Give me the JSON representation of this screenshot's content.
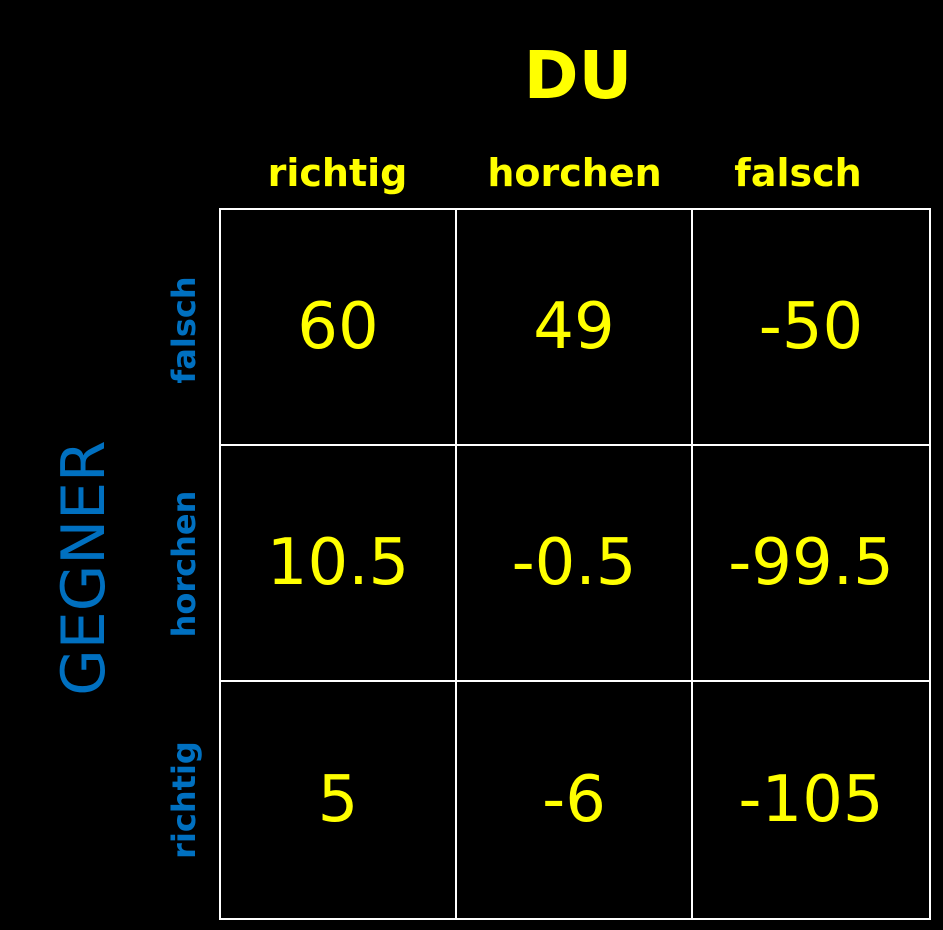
{
  "column_player": "DU",
  "row_player": "GEGNER",
  "columns": [
    "richtig",
    "horchen",
    "falsch"
  ],
  "rows": [
    "falsch",
    "horchen",
    "richtig"
  ],
  "cells": [
    [
      "60",
      "49",
      "-50"
    ],
    [
      "10.5",
      "-0.5",
      "-99.5"
    ],
    [
      "5",
      "-6",
      "-105"
    ]
  ],
  "colors": {
    "background": "#000000",
    "column_text": "#ffff00",
    "row_text": "#0070c0",
    "grid_lines": "#ffffff"
  }
}
